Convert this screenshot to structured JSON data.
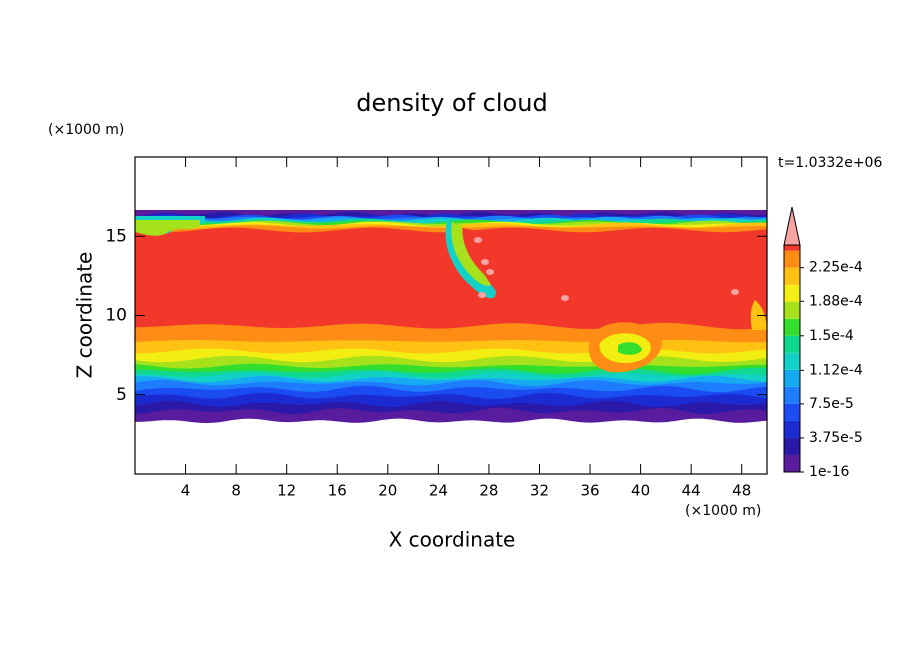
{
  "chart_data": {
    "type": "contour",
    "title": "density of cloud",
    "x_label": "X coordinate",
    "y_label": "Z coordinate",
    "x_unit": "(×1000 m)",
    "y_unit": "(×1000 m)",
    "annotation": "t=1.0332e+06",
    "xlim": [
      0,
      50
    ],
    "xticks": [
      4,
      8,
      12,
      16,
      20,
      24,
      28,
      32,
      36,
      40,
      44,
      48
    ],
    "ylim": [
      0,
      20
    ],
    "yticks": [
      5,
      10,
      15
    ],
    "clim": [
      0,
      0.00025
    ],
    "levels": [
      1e-16,
      1.875e-05,
      3.75e-05,
      5.625e-05,
      7.5e-05,
      9.375e-05,
      0.0001125,
      0.00013125,
      0.00015,
      0.00016875,
      0.0001875,
      0.00020625,
      0.000225,
      0.00024375
    ],
    "colors": [
      "#5a1c9e",
      "#2a18a8",
      "#1c2ad2",
      "#1a4cf2",
      "#1e7cff",
      "#16aaf2",
      "#12d2c8",
      "#10d88e",
      "#34de2c",
      "#a6e21c",
      "#f2ee12",
      "#ffc212",
      "#ff8c14",
      "#f2382a"
    ],
    "extend_color": "#f5a3a3",
    "cbar_ticks": [
      1e-16,
      {
        "value": 3.75e-05,
        "label": "3.75e-5"
      },
      {
        "value": 7.5e-05,
        "label": "7.5e-5"
      },
      {
        "value": 0.000112,
        "label": "1.12e-4"
      },
      {
        "value": 0.00015,
        "label": "1.5e-4"
      },
      {
        "value": 0.000188,
        "label": "1.88e-4"
      },
      {
        "value": 0.000225,
        "label": "2.25e-4"
      }
    ]
  }
}
